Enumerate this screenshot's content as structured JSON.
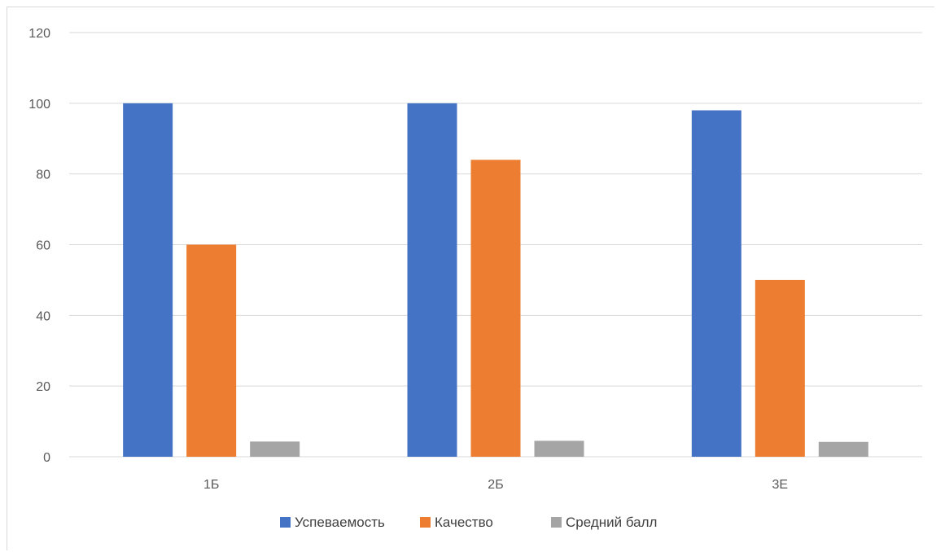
{
  "chart_data": {
    "type": "bar",
    "categories": [
      "1Б",
      "2Б",
      "3Е"
    ],
    "series": [
      {
        "name": "Успеваемость",
        "values": [
          100,
          100,
          98
        ],
        "color": "#4472C4"
      },
      {
        "name": "Качество",
        "values": [
          60,
          84,
          50
        ],
        "color": "#ED7D31"
      },
      {
        "name": "Средний балл",
        "values": [
          4.3,
          4.5,
          4.2
        ],
        "color": "#A5A5A5"
      }
    ],
    "ylim": [
      0,
      120
    ],
    "yticks": [
      0,
      20,
      40,
      60,
      80,
      100,
      120
    ],
    "grid": true,
    "gridColor": "#D9D9D9",
    "legend_position": "bottom",
    "title": "",
    "xlabel": "",
    "ylabel": ""
  }
}
